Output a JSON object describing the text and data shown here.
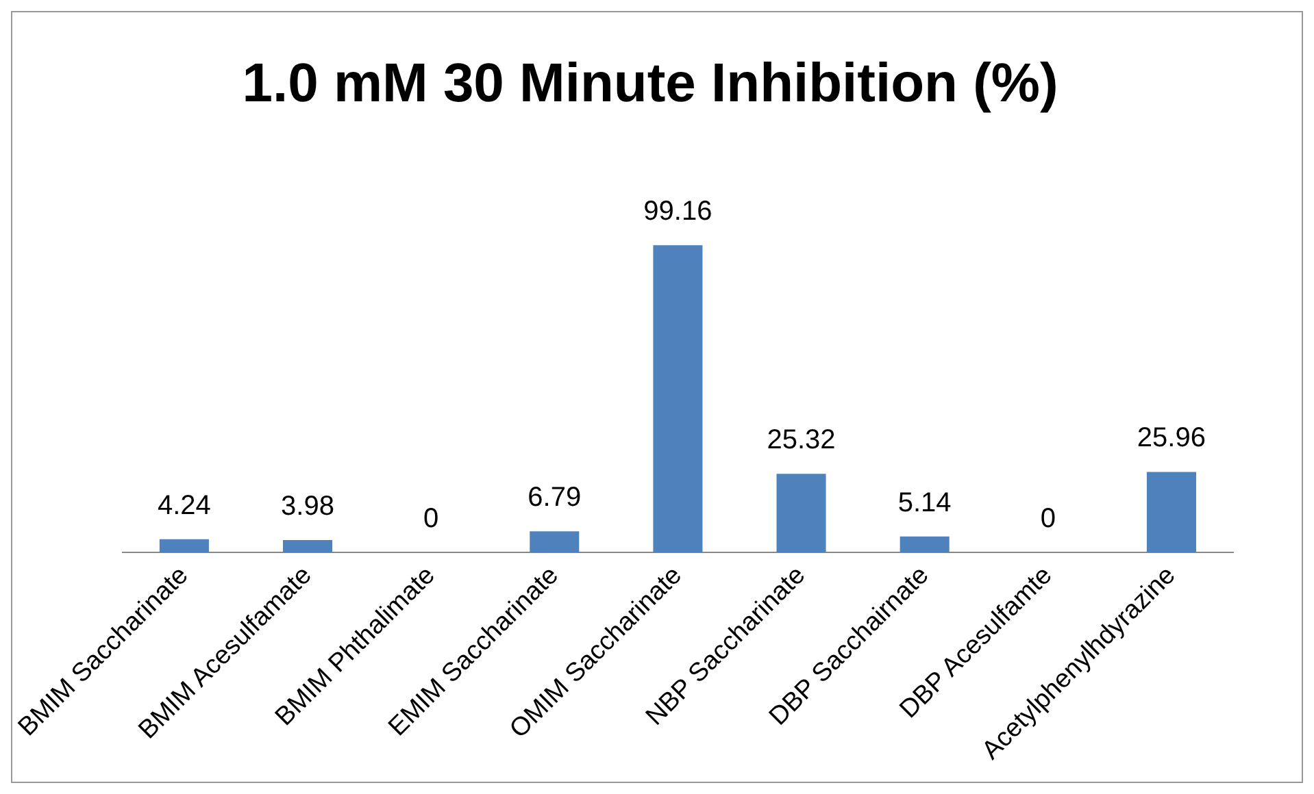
{
  "chart_data": {
    "type": "bar",
    "title": "1.0 mM 30 Minute Inhibition (%)",
    "categories": [
      "BMIM Saccharinate",
      "BMIM Acesulfamate",
      "BMIM Phthalimate",
      "EMIM Saccharinate",
      "OMIM Saccharinate",
      "NBP Saccharinate",
      "DBP Sacchairnate",
      "DBP Acesulfamte",
      "Acetylphenylhdyrazine"
    ],
    "values": [
      4.24,
      3.98,
      0,
      6.79,
      99.16,
      25.32,
      5.14,
      0,
      25.96
    ],
    "color": "#4f81bd",
    "data_labels": true,
    "grid": false,
    "legend": false
  }
}
